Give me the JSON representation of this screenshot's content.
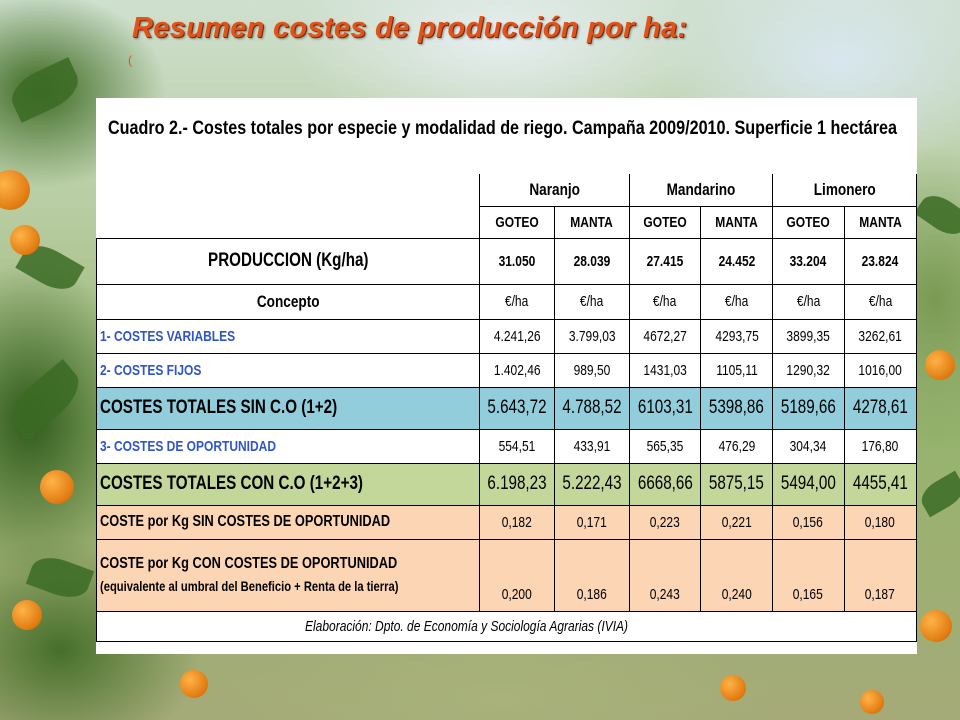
{
  "slide": {
    "title": "Resumen costes de producción por ha:",
    "title_mark": "("
  },
  "table": {
    "caption": "Cuadro 2.- Costes totales por especie y modalidad de riego. Campaña 2009/2010. Superficie 1 hectárea",
    "species": [
      "Naranjo",
      "Mandarino",
      "Limonero"
    ],
    "methods": [
      "GOTEO",
      "MANTA",
      "GOTEO",
      "MANTA",
      "GOTEO",
      "MANTA"
    ],
    "rows": [
      {
        "label": "PRODUCCION (Kg/ha)",
        "values": [
          "31.050",
          "28.039",
          "27.415",
          "24.452",
          "33.204",
          "23.824"
        ]
      },
      {
        "label": "Concepto",
        "values": [
          "€/ha",
          "€/ha",
          "€/ha",
          "€/ha",
          "€/ha",
          "€/ha"
        ]
      },
      {
        "label": "1- COSTES VARIABLES",
        "values": [
          "4.241,26",
          "3.799,03",
          "4672,27",
          "4293,75",
          "3899,35",
          "3262,61"
        ]
      },
      {
        "label": "2- COSTES FIJOS",
        "values": [
          "1.402,46",
          "989,50",
          "1431,03",
          "1105,11",
          "1290,32",
          "1016,00"
        ]
      },
      {
        "label": "COSTES TOTALES SIN C.O (1+2)",
        "values": [
          "5.643,72",
          "4.788,52",
          "6103,31",
          "5398,86",
          "5189,66",
          "4278,61"
        ]
      },
      {
        "label": "3- COSTES DE OPORTUNIDAD",
        "values": [
          "554,51",
          "433,91",
          "565,35",
          "476,29",
          "304,34",
          "176,80"
        ]
      },
      {
        "label": "COSTES TOTALES CON C.O (1+2+3)",
        "values": [
          "6.198,23",
          "5.222,43",
          "6668,66",
          "5875,15",
          "5494,00",
          "4455,41"
        ]
      },
      {
        "label": "COSTE por Kg SIN COSTES DE OPORTUNIDAD",
        "values": [
          "0,182",
          "0,171",
          "0,223",
          "0,221",
          "0,156",
          "0,180"
        ]
      },
      {
        "label": "COSTE por Kg CON COSTES DE OPORTUNIDAD",
        "label2": "(equivalente al umbral del Beneficio + Renta de la tierra)",
        "values": [
          "0,200",
          "0,186",
          "0,243",
          "0,240",
          "0,165",
          "0,187"
        ]
      }
    ],
    "footnote": "Elaboración: Dpto. de Economía y Sociología Agrarias (IVIA)"
  },
  "colors": {
    "title": "#e0541c",
    "highlight_blue": "#92cddc",
    "highlight_green": "#c4d79b",
    "highlight_peach": "#fcd5b4",
    "label_blue_text": "#2f55c6"
  }
}
